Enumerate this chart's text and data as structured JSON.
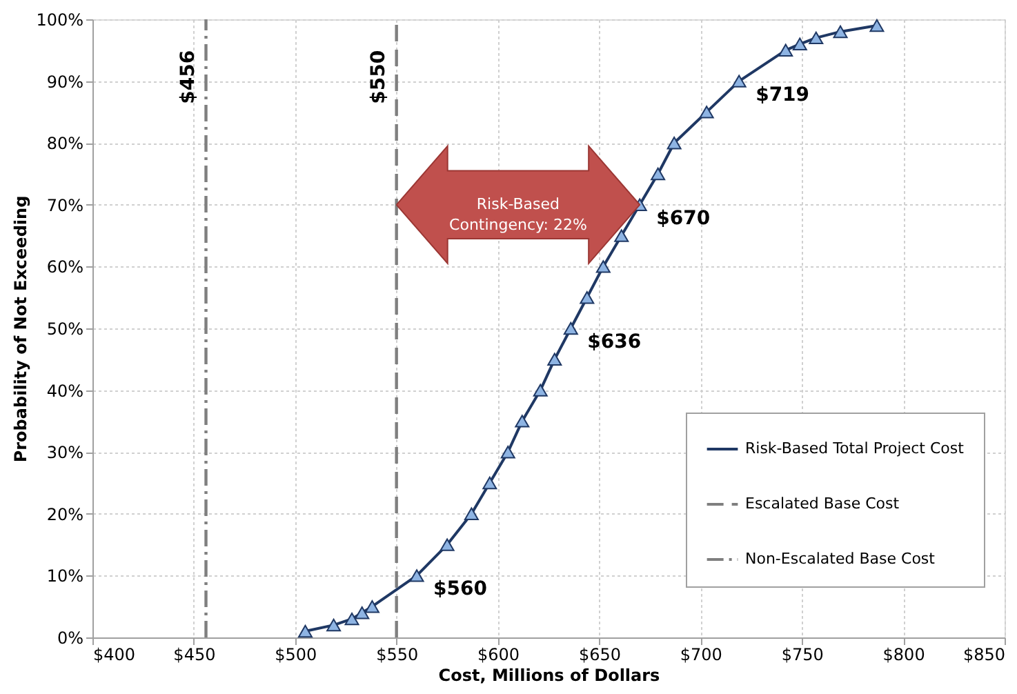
{
  "chart_data": {
    "type": "line",
    "xlabel": "Cost, Millions of Dollars",
    "ylabel": "Probability of Not Exceeding",
    "xlim": [
      400,
      850
    ],
    "ylim": [
      0,
      100
    ],
    "xticks": [
      {
        "value": 400,
        "label": "$400"
      },
      {
        "value": 450,
        "label": "$450"
      },
      {
        "value": 500,
        "label": "$500"
      },
      {
        "value": 550,
        "label": "$550"
      },
      {
        "value": 600,
        "label": "$600"
      },
      {
        "value": 650,
        "label": "$650"
      },
      {
        "value": 700,
        "label": "$700"
      },
      {
        "value": 750,
        "label": "$750"
      },
      {
        "value": 800,
        "label": "$800"
      },
      {
        "value": 850,
        "label": "$850"
      }
    ],
    "yticks": [
      {
        "value": 0,
        "label": "0%"
      },
      {
        "value": 10,
        "label": "10%"
      },
      {
        "value": 20,
        "label": "20%"
      },
      {
        "value": 30,
        "label": "30%"
      },
      {
        "value": 40,
        "label": "40%"
      },
      {
        "value": 50,
        "label": "50%"
      },
      {
        "value": 60,
        "label": "60%"
      },
      {
        "value": 70,
        "label": "70%"
      },
      {
        "value": 80,
        "label": "80%"
      },
      {
        "value": 90,
        "label": "90%"
      },
      {
        "value": 100,
        "label": "100%"
      }
    ],
    "grid": true,
    "legend": "bottom right",
    "series": [
      {
        "name": "Risk-Based Total Project Cost",
        "color": "#1f3864",
        "marker": "triangle",
        "line_style": "solid",
        "x": [
          505,
          519,
          528,
          533,
          538,
          560,
          575,
          587,
          596,
          605,
          612,
          621,
          628,
          636,
          644,
          652,
          661,
          670,
          679,
          687,
          703,
          719,
          742,
          749,
          757,
          769,
          787
        ],
        "values": [
          1,
          2,
          3,
          4,
          5,
          10,
          15,
          20,
          25,
          30,
          35,
          40,
          45,
          50,
          55,
          60,
          65,
          70,
          75,
          80,
          85,
          90,
          95,
          96,
          97,
          98,
          99
        ]
      },
      {
        "name": "Escalated Base Cost",
        "color": "#7f7f7f",
        "marker": "none",
        "line_style": "dashed",
        "x": [
          550,
          550
        ],
        "values": [
          0,
          100
        ]
      },
      {
        "name": "Non-Escalated Base Cost",
        "color": "#7f7f7f",
        "marker": "none",
        "line_style": "dashdot",
        "x": [
          456,
          456
        ],
        "values": [
          0,
          100
        ]
      }
    ],
    "annotations": [
      {
        "text": "$560",
        "x": 560,
        "y": 10
      },
      {
        "text": "$636",
        "x": 636,
        "y": 50
      },
      {
        "text": "$670",
        "x": 670,
        "y": 70
      },
      {
        "text": "$719",
        "x": 719,
        "y": 90
      },
      {
        "text": "$456",
        "x": 456
      },
      {
        "text": "$550",
        "x": 550
      },
      "Risk-Based\nContingency: 22%"
    ]
  }
}
